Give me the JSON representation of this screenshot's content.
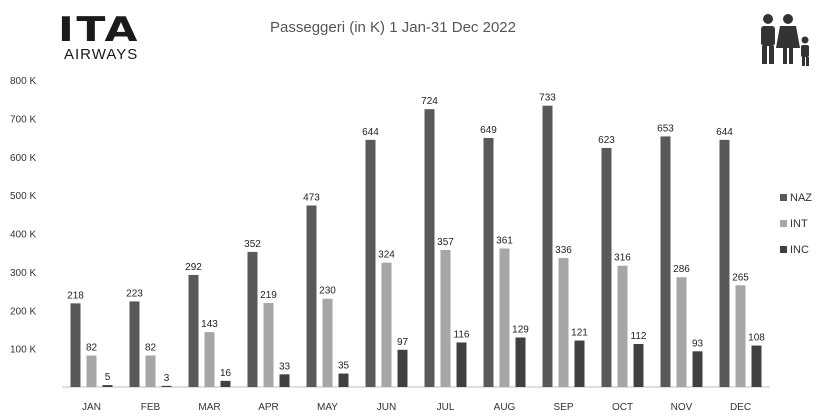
{
  "branding": {
    "logo_text": "ITA",
    "logo_subtext": "AIRWAYS"
  },
  "chart_data": {
    "type": "bar",
    "title": "Passeggeri (in K) 1 Jan-31 Dec 2022",
    "categories": [
      "JAN",
      "FEB",
      "MAR",
      "APR",
      "MAY",
      "JUN",
      "JUL",
      "AUG",
      "SEP",
      "OCT",
      "NOV",
      "DEC"
    ],
    "series": [
      {
        "name": "NAZ",
        "color": "#595959",
        "values": [
          218,
          223,
          292,
          352,
          473,
          644,
          724,
          649,
          733,
          623,
          653,
          644
        ]
      },
      {
        "name": "INT",
        "color": "#a6a6a6",
        "values": [
          82,
          82,
          143,
          219,
          230,
          324,
          357,
          361,
          336,
          316,
          286,
          265
        ]
      },
      {
        "name": "INC",
        "color": "#404040",
        "values": [
          5,
          3,
          16,
          33,
          35,
          97,
          116,
          129,
          121,
          112,
          93,
          108
        ]
      }
    ],
    "ylim": [
      0,
      800
    ],
    "yticks": [
      {
        "value": 100,
        "label": "100 K"
      },
      {
        "value": 200,
        "label": "200 K"
      },
      {
        "value": 300,
        "label": "300 K"
      },
      {
        "value": 400,
        "label": "400 K"
      },
      {
        "value": 500,
        "label": "500 K"
      },
      {
        "value": 600,
        "label": "600 K"
      },
      {
        "value": 700,
        "label": "700 K"
      },
      {
        "value": 800,
        "label": "800 K"
      }
    ],
    "legend_position": "right",
    "grid": false
  }
}
